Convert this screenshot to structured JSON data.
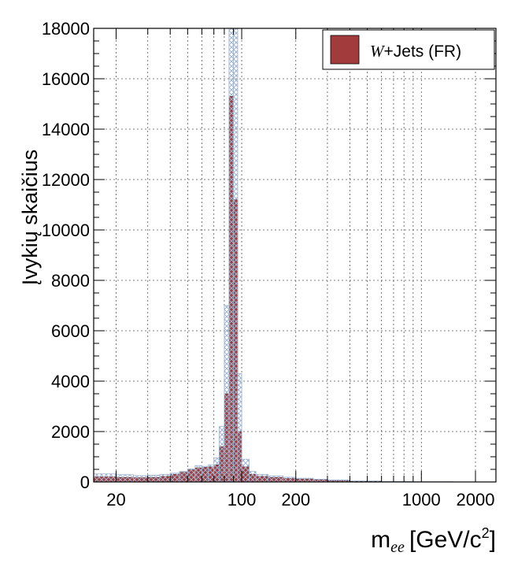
{
  "chart_data": {
    "type": "bar",
    "xscale": "log",
    "xlim": [
      15,
      2600
    ],
    "ylim": [
      0,
      18000
    ],
    "grid": true,
    "legend_position": "top-right",
    "xlabel": "m",
    "xlabel_subscript": "ee",
    "xlabel_units": "[GeV/c",
    "xlabel_units_sup": "2",
    "xlabel_units_close": "]",
    "ylabel": "Įvykių skaičius",
    "x_ticks": [
      {
        "value": 20,
        "label": "20"
      },
      {
        "value": 100,
        "label": "100"
      },
      {
        "value": 200,
        "label": "200"
      },
      {
        "value": 1000,
        "label": "1000"
      },
      {
        "value": 2000,
        "label": "2000"
      }
    ],
    "y_ticks": [
      {
        "value": 0,
        "label": "0"
      },
      {
        "value": 2000,
        "label": "2000"
      },
      {
        "value": 4000,
        "label": "4000"
      },
      {
        "value": 6000,
        "label": "6000"
      },
      {
        "value": 8000,
        "label": "8000"
      },
      {
        "value": 10000,
        "label": "10000"
      },
      {
        "value": 12000,
        "label": "12000"
      },
      {
        "value": 14000,
        "label": "14000"
      },
      {
        "value": 16000,
        "label": "16000"
      },
      {
        "value": 18000,
        "label": "18000"
      }
    ],
    "legend": {
      "italic": "W",
      "text": "+Jets (FR)"
    },
    "colors": {
      "fill": "#a23b3b",
      "hatch": "#9fb3cf"
    },
    "series": [
      {
        "name": "W+Jets (FR)",
        "bins": [
          {
            "lo": 15,
            "hi": 20,
            "value": 200,
            "unc": 320
          },
          {
            "lo": 20,
            "hi": 25,
            "value": 180,
            "unc": 290
          },
          {
            "lo": 25,
            "hi": 30,
            "value": 170,
            "unc": 250
          },
          {
            "lo": 30,
            "hi": 35,
            "value": 180,
            "unc": 270
          },
          {
            "lo": 35,
            "hi": 40,
            "value": 220,
            "unc": 300
          },
          {
            "lo": 40,
            "hi": 45,
            "value": 300,
            "unc": 350
          },
          {
            "lo": 45,
            "hi": 50,
            "value": 380,
            "unc": 420
          },
          {
            "lo": 50,
            "hi": 55,
            "value": 480,
            "unc": 520
          },
          {
            "lo": 55,
            "hi": 60,
            "value": 560,
            "unc": 650
          },
          {
            "lo": 60,
            "hi": 65,
            "value": 580,
            "unc": 620
          },
          {
            "lo": 65,
            "hi": 70,
            "value": 600,
            "unc": 680
          },
          {
            "lo": 70,
            "hi": 75,
            "value": 680,
            "unc": 950
          },
          {
            "lo": 75,
            "hi": 80,
            "value": 1400,
            "unc": 2200
          },
          {
            "lo": 80,
            "hi": 85,
            "value": 3500,
            "unc": 7000
          },
          {
            "lo": 85,
            "hi": 90,
            "value": 15300,
            "unc": 18000
          },
          {
            "lo": 90,
            "hi": 95,
            "value": 11200,
            "unc": 18000
          },
          {
            "lo": 95,
            "hi": 100,
            "value": 2000,
            "unc": 4300
          },
          {
            "lo": 100,
            "hi": 110,
            "value": 600,
            "unc": 900
          },
          {
            "lo": 110,
            "hi": 120,
            "value": 300,
            "unc": 420
          },
          {
            "lo": 120,
            "hi": 140,
            "value": 220,
            "unc": 300
          },
          {
            "lo": 140,
            "hi": 170,
            "value": 180,
            "unc": 240
          },
          {
            "lo": 170,
            "hi": 200,
            "value": 140,
            "unc": 190
          },
          {
            "lo": 200,
            "hi": 250,
            "value": 110,
            "unc": 150
          },
          {
            "lo": 250,
            "hi": 300,
            "value": 80,
            "unc": 110
          },
          {
            "lo": 300,
            "hi": 400,
            "value": 50,
            "unc": 80
          },
          {
            "lo": 400,
            "hi": 600,
            "value": 25,
            "unc": 40
          },
          {
            "lo": 600,
            "hi": 900,
            "value": 10,
            "unc": 20
          },
          {
            "lo": 900,
            "hi": 1500,
            "value": 4,
            "unc": 10
          },
          {
            "lo": 1500,
            "hi": 2600,
            "value": 1,
            "unc": 3
          }
        ]
      }
    ]
  }
}
